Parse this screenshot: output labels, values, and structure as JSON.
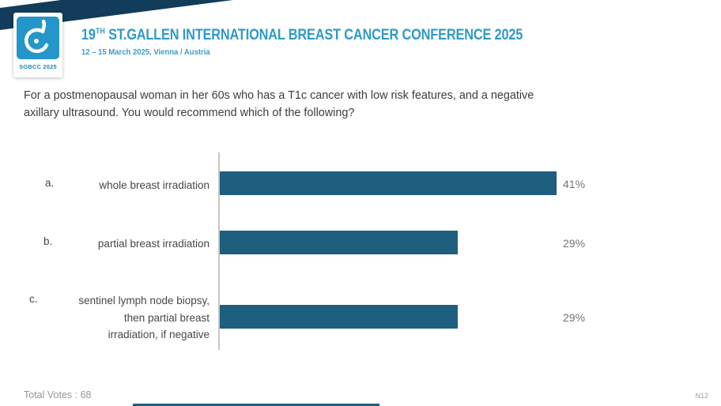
{
  "header": {
    "logo": {
      "icon": "sgbcc-drop-logo",
      "badge": "SGBCC 2025"
    },
    "title_num": "19",
    "title_sup": "TH",
    "title_main": "ST.GALLEN INTERNATIONAL BREAST CANCER CONFERENCE 2025",
    "subtitle": "12 – 15 March 2025, Vienna / Austria"
  },
  "question": "For a postmenopausal woman in her 60s who has a T1c cancer with low risk features, and a negative\naxillary ultrasound. You would recommend which of the following?",
  "chart_data": {
    "type": "bar",
    "orientation": "horizontal",
    "title": "",
    "categories": [
      "a. whole breast irradiation",
      "b. partial breast irradiation",
      "c. sentinel lymph node biopsy, then partial breast irradiation, if negative"
    ],
    "values": [
      41,
      29,
      29
    ],
    "unit": "%",
    "value_labels": [
      "41%",
      "29%",
      "29%"
    ],
    "xlim": [
      0,
      100
    ],
    "bar_color": "#1e5e7e",
    "grid": false,
    "legend": false
  },
  "options": [
    {
      "letter": "a.",
      "label": "whole breast irradiation",
      "percent": "41%",
      "value": 41
    },
    {
      "letter": "b.",
      "label": "partial breast irradiation",
      "percent": "29%",
      "value": 29
    },
    {
      "letter": "c.",
      "label": "sentinel lymph node biopsy,\nthen partial breast\nirradiation, if negative",
      "percent": "29%",
      "value": 29
    }
  ],
  "footer": {
    "total_votes": "Total Votes : 68",
    "slide_code": "N12"
  },
  "colors": {
    "bar": "#1e5e7e",
    "title_blue": "#2e9ac5",
    "ribbon_navy": "#123c59",
    "logo_blue": "#2496ca"
  }
}
